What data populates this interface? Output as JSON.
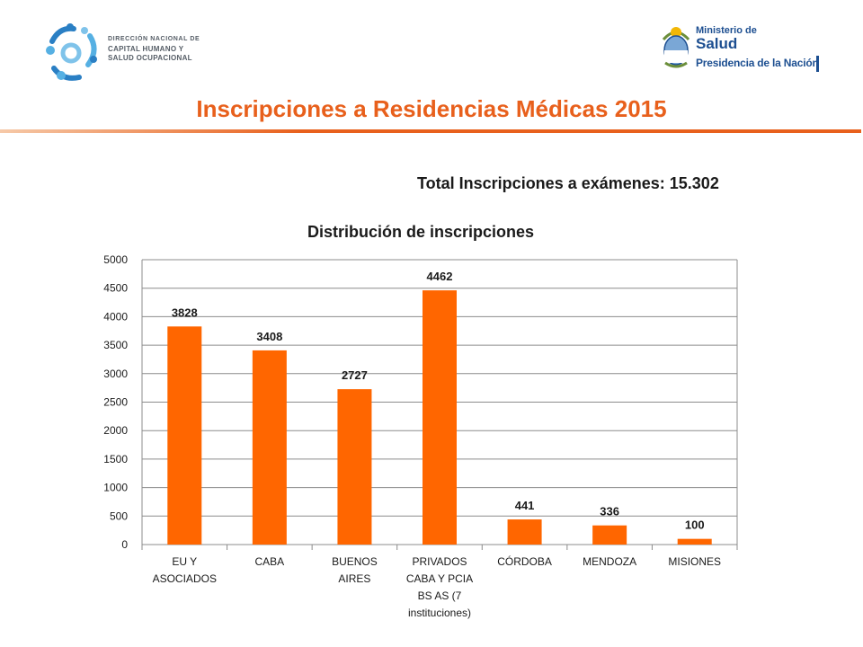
{
  "header": {
    "org_lines": [
      "DIRECCIÓN NACIONAL DE",
      "CAPITAL HUMANO Y",
      "SALUD OCUPACIONAL"
    ],
    "ministry_line1": "Ministerio de",
    "ministry_line2": "Salud",
    "ministry_line3": "Presidencia de la Nación"
  },
  "title": "Inscripciones a Residencias Médicas 2015",
  "total_text": "Total Inscripciones a exámenes: 15.302",
  "colors": {
    "accent": "#e8601c",
    "bar": "#ff6600",
    "ministry_blue": "#1d4f91"
  },
  "chart_data": {
    "type": "bar",
    "title": "Distribución de inscripciones",
    "categories": [
      [
        "EU Y",
        "ASOCIADOS"
      ],
      [
        "CABA"
      ],
      [
        "BUENOS",
        "AIRES"
      ],
      [
        "PRIVADOS",
        "CABA Y PCIA",
        "BS AS (7",
        "instituciones)"
      ],
      [
        "CÓRDOBA"
      ],
      [
        "MENDOZA"
      ],
      [
        "MISIONES"
      ]
    ],
    "values": [
      3828,
      3408,
      2727,
      4462,
      441,
      336,
      100
    ],
    "ylim": [
      0,
      5000
    ],
    "yticks": [
      0,
      500,
      1000,
      1500,
      2000,
      2500,
      3000,
      3500,
      4000,
      4500,
      5000
    ],
    "grid": true,
    "legend": "none",
    "data_labels": true
  }
}
